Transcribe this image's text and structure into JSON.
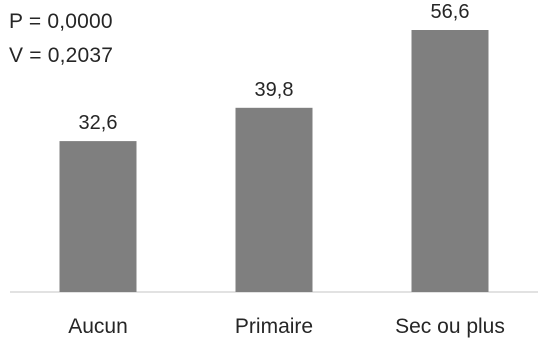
{
  "annotations": {
    "p_value": "P = 0,0000",
    "v_value": "V = 0,2037"
  },
  "chart_data": {
    "type": "bar",
    "categories": [
      "Aucun",
      "Primaire",
      "Sec ou plus"
    ],
    "values": [
      32.6,
      39.8,
      56.6
    ],
    "data_labels": [
      "32,6",
      "39,8",
      "56,6"
    ],
    "title": "",
    "xlabel": "",
    "ylabel": "",
    "ylim": [
      0,
      60
    ],
    "grid": false,
    "legend": "none",
    "bar_color": "#7f7f7f",
    "text_color": "#262626",
    "axis_color": "#d9d9d9"
  }
}
